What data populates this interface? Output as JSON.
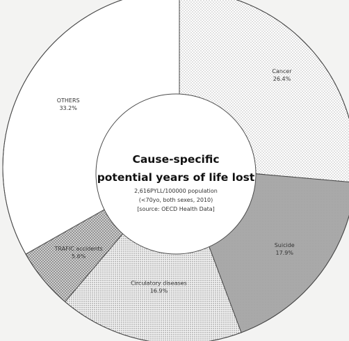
{
  "chart_data": {
    "type": "pie",
    "style": "donut",
    "title_lines": [
      "Cause-specific",
      "potential years of life lost"
    ],
    "subtitle_lines": [
      "2,616PYLL/100000 population",
      "(<70yo, both sexes, 2010)",
      "[source: OECD Health Data]"
    ],
    "start_angle_deg": 0,
    "direction": "clockwise",
    "slices": [
      {
        "label": "Cancer",
        "value_text": "26.4%",
        "value": 26.4,
        "pattern": "dots-light",
        "color": "#ffffff"
      },
      {
        "label": "Suicide",
        "value_text": "17.9%",
        "value": 17.9,
        "pattern": "solid",
        "color": "#a9a9a9"
      },
      {
        "label": "Circulatory diseases",
        "value_text": "16.9%",
        "value": 16.9,
        "pattern": "dots-dense",
        "color": "#e2e2e2"
      },
      {
        "label": "TRAFIC accidents",
        "value_text": "5.6%",
        "value": 5.6,
        "pattern": "crosshatch",
        "color": "#c4c4c4"
      },
      {
        "label": "OTHERS",
        "value_text": "33.2%",
        "value": 33.2,
        "pattern": "none",
        "color": "#ffffff"
      }
    ]
  }
}
